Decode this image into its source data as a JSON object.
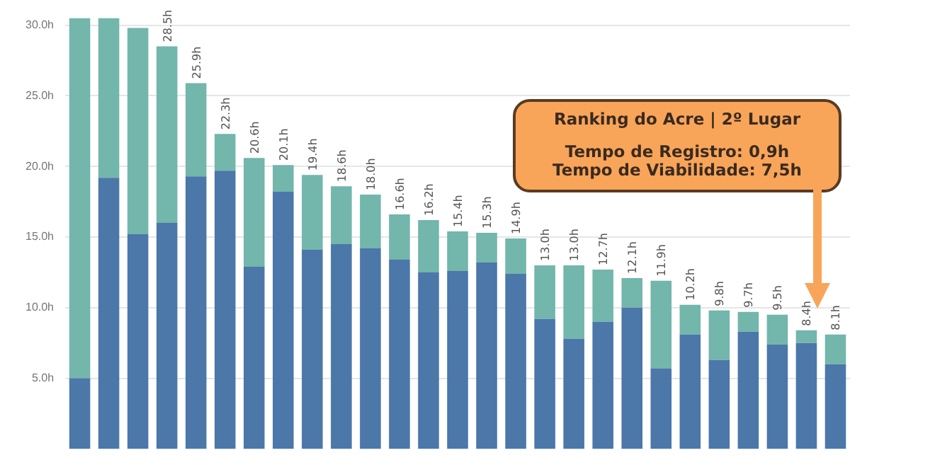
{
  "chart_data": {
    "type": "bar",
    "stacked": true,
    "categories": [
      null,
      null,
      null,
      null,
      null,
      null,
      null,
      null,
      null,
      null,
      null,
      null,
      null,
      null,
      null,
      null,
      null,
      null,
      null,
      null,
      null,
      null,
      null,
      null,
      null,
      null,
      null
    ],
    "series": [
      {
        "color": "#4b77a9",
        "values": [
          5.0,
          19.2,
          15.2,
          16.0,
          19.3,
          19.7,
          12.9,
          18.2,
          14.1,
          14.5,
          14.2,
          13.4,
          12.5,
          12.6,
          13.2,
          12.4,
          9.2,
          7.8,
          9.0,
          10.0,
          5.7,
          8.1,
          6.3,
          8.3,
          7.4,
          7.5,
          6.0
        ]
      },
      {
        "color": "#72b6ac",
        "values": [
          25.5,
          11.3,
          14.6,
          12.5,
          6.6,
          2.6,
          7.7,
          1.9,
          5.3,
          4.1,
          3.8,
          3.2,
          3.7,
          2.8,
          2.1,
          2.5,
          3.8,
          5.2,
          3.7,
          2.1,
          6.2,
          2.1,
          3.5,
          1.4,
          2.1,
          0.9,
          2.1
        ]
      }
    ],
    "totals": [
      null,
      null,
      null,
      "28.5h",
      "25.9h",
      "22.3h",
      "20.6h",
      "20.1h",
      "19.4h",
      "18.6h",
      "18.0h",
      "16.6h",
      "16.2h",
      "15.4h",
      "15.3h",
      "14.9h",
      "13.0h",
      "13.0h",
      "12.7h",
      "12.1h",
      "11.9h",
      "10.2h",
      "9.8h",
      "9.7h",
      "9.5h",
      "8.4h",
      "8.1h"
    ],
    "ylim": [
      0,
      30.5
    ],
    "yticks": [
      {
        "value": 5,
        "label": "5.0h"
      },
      {
        "value": 10,
        "label": "10.0h"
      },
      {
        "value": 15,
        "label": "15.0h"
      },
      {
        "value": 20,
        "label": "20.0h"
      },
      {
        "value": 25,
        "label": "25.0h"
      },
      {
        "value": 30,
        "label": "30.0h"
      }
    ],
    "grid": "y",
    "tick_labels": "y",
    "annotations": [
      "Ranking do Acre | 2º Lugar",
      "Tempo de Registro: 0,9h\nTempo de Viabilidade: 7,5h"
    ]
  }
}
